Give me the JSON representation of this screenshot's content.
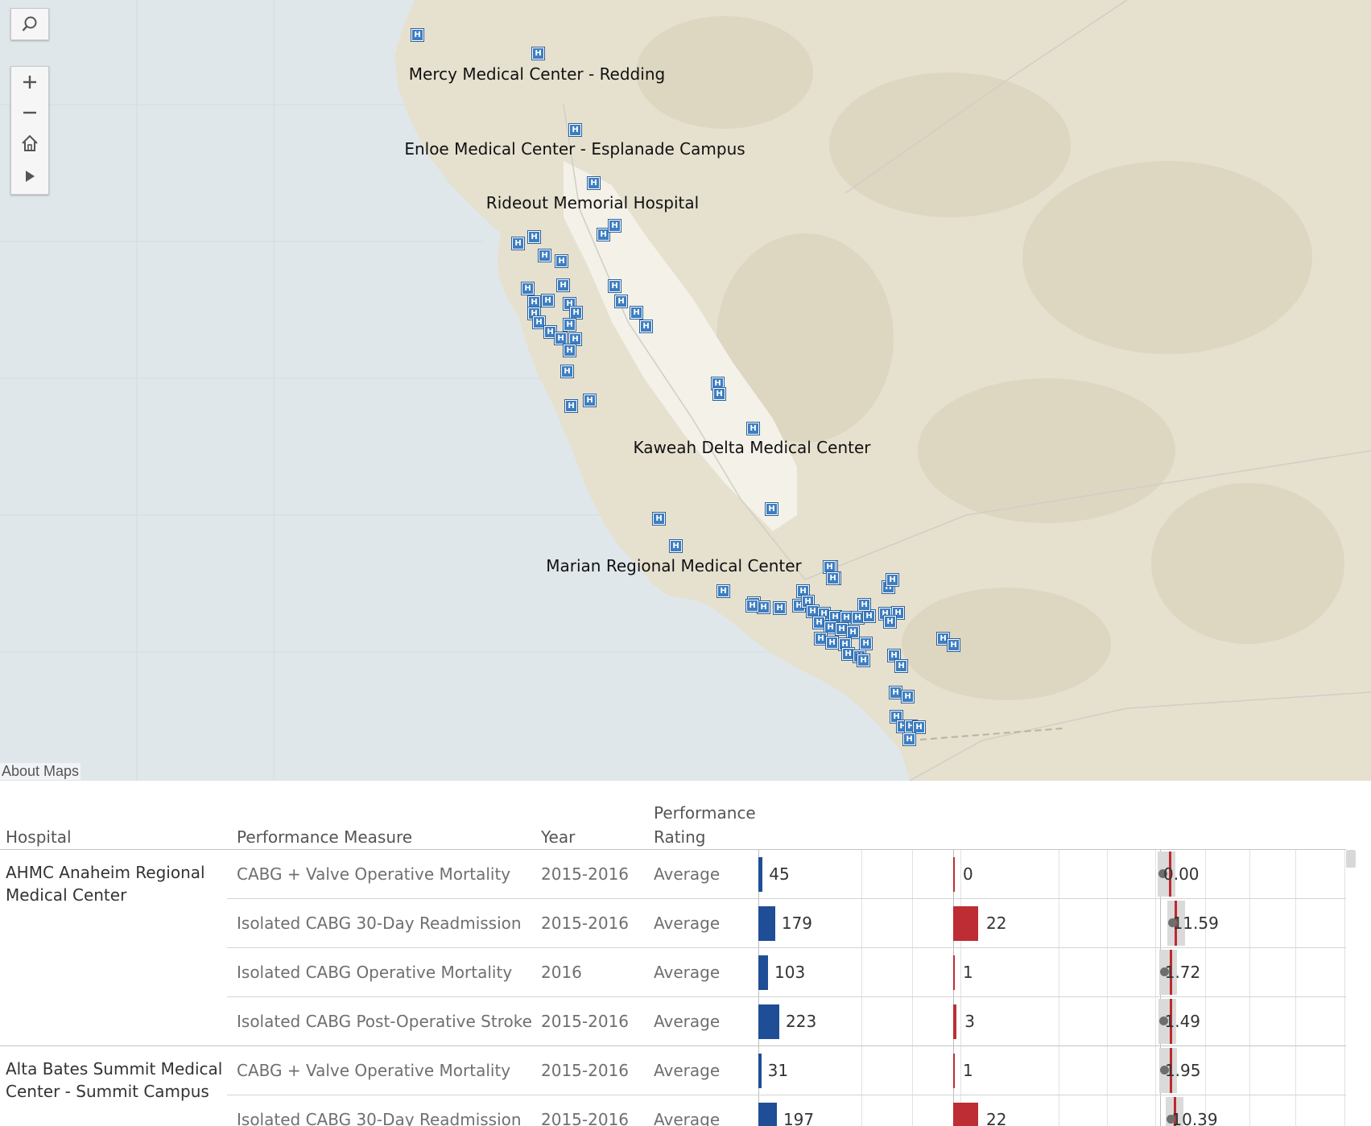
{
  "map": {
    "about_label": "About Maps",
    "controls": {
      "search_icon": "search-icon",
      "zoom_in_icon": "plus-icon",
      "zoom_out_icon": "minus-icon",
      "home_icon": "home-icon",
      "expand_icon": "play-icon"
    },
    "marker_glyph": "H",
    "labels": [
      "Mercy Medical Center - Redding",
      "Enloe Medical Center - Esplanade Campus",
      "Rideout Memorial Hospital",
      "Kaweah Delta Medical Center",
      "Marian Regional Medical Center"
    ],
    "colors": {
      "ocean": "#dfe7ea",
      "land": "#e6e0cf",
      "valley": "#f3f1e8",
      "marker": "#3d7ec1"
    }
  },
  "table": {
    "headers": {
      "hospital": "Hospital",
      "measure": "Performance Measure",
      "year": "Year",
      "rating_line1": "Performance",
      "rating_line2": "Rating"
    },
    "groups": [
      {
        "hospital": "AHMC Anaheim Regional Medical Center",
        "rows": [
          {
            "measure": "CABG + Valve Operative Mortality",
            "year": "2015-2016",
            "rating": "Average",
            "cases": "45",
            "events": "0",
            "rate": "0.00"
          },
          {
            "measure": "Isolated CABG 30-Day Readmission",
            "year": "2015-2016",
            "rating": "Average",
            "cases": "179",
            "events": "22",
            "rate": "11.59"
          },
          {
            "measure": "Isolated CABG Operative Mortality",
            "year": "2016",
            "rating": "Average",
            "cases": "103",
            "events": "1",
            "rate": "1.72"
          },
          {
            "measure": "Isolated CABG Post-Operative Stroke",
            "year": "2015-2016",
            "rating": "Average",
            "cases": "223",
            "events": "3",
            "rate": "1.49"
          }
        ]
      },
      {
        "hospital": "Alta Bates Summit Medical Center - Summit Campus",
        "rows": [
          {
            "measure": "CABG + Valve Operative Mortality",
            "year": "2015-2016",
            "rating": "Average",
            "cases": "31",
            "events": "1",
            "rate": "1.95"
          },
          {
            "measure": "Isolated CABG 30-Day Readmission",
            "year": "2015-2016",
            "rating": "Average",
            "cases": "197",
            "events": "22",
            "rate": "10.39"
          }
        ]
      }
    ],
    "colors": {
      "cases_bar": "#1f4e96",
      "events_bar": "#bd2d33",
      "benchmark": "#c0282d",
      "point": "#6e6e6e"
    }
  }
}
